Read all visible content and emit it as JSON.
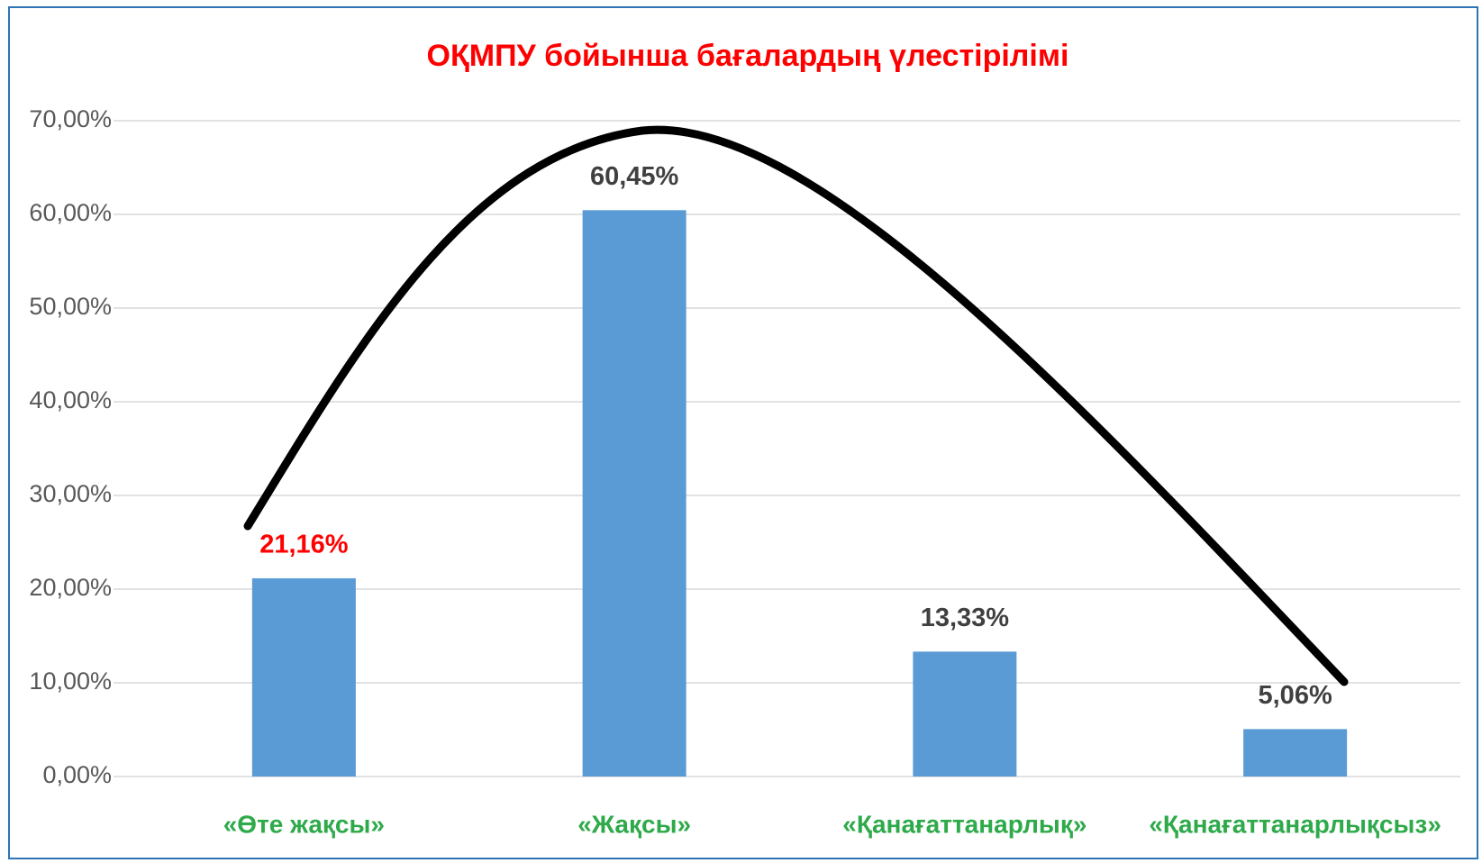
{
  "chart_data": {
    "type": "bar",
    "title": "ОҚМПУ бойынша бағалардың үлестірілімі",
    "title_color": "#ff0000",
    "categories": [
      "«Өте жақсы»",
      "«Жақсы»",
      "«Қанағаттанарлық»",
      "«Қанағаттанарлықсыз»"
    ],
    "category_color": "#2eaa4a",
    "values": [
      21.16,
      60.45,
      13.33,
      5.06
    ],
    "value_labels": [
      "21,16%",
      "60,45%",
      "13,33%",
      "5,06%"
    ],
    "value_label_colors": [
      "#ff0000",
      "#404040",
      "#404040",
      "#404040"
    ],
    "color": "#5b9bd5",
    "ylim": [
      0,
      70
    ],
    "yticks": [
      {
        "value": 0,
        "label": "0,00%"
      },
      {
        "value": 10,
        "label": "10,00%"
      },
      {
        "value": 20,
        "label": "20,00%"
      },
      {
        "value": 30,
        "label": "30,00%"
      },
      {
        "value": 40,
        "label": "40,00%"
      },
      {
        "value": 50,
        "label": "50,00%"
      },
      {
        "value": 60,
        "label": "60,00%"
      },
      {
        "value": 70,
        "label": "70,00%"
      }
    ],
    "grid": true
  }
}
